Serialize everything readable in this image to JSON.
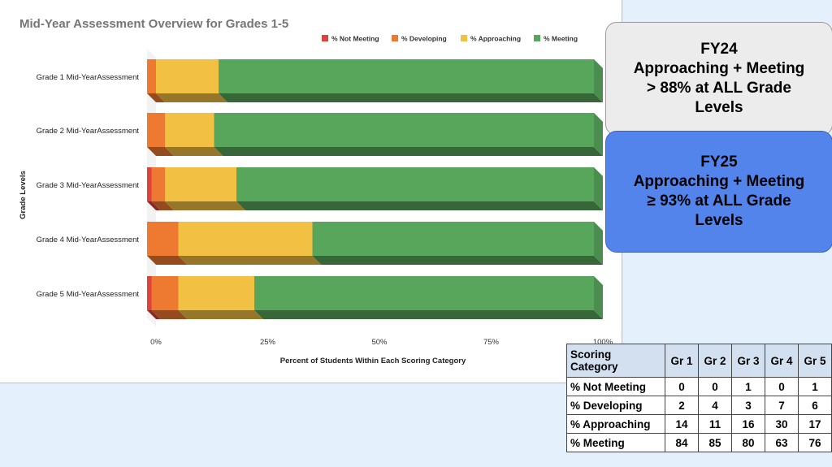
{
  "chart_data": {
    "type": "bar",
    "orientation": "horizontal",
    "stacked": true,
    "title": "Mid-Year Assessment Overview for Grades 1-5",
    "xlabel": "Percent of Students Within Each Scoring Category",
    "ylabel": "Grade Levels",
    "xlim": [
      0,
      100
    ],
    "x_ticks": [
      "0%",
      "25%",
      "50%",
      "75%",
      "100%"
    ],
    "legend_position": "top-right",
    "categories": [
      "Grade 1 Mid-YearAssessment",
      "Grade 2 Mid-YearAssessment",
      "Grade 3 Mid-YearAssessment",
      "Grade 4 Mid-YearAssessment",
      "Grade 5 Mid-YearAssessment"
    ],
    "series": [
      {
        "name": "% Not Meeting",
        "color": "#e0413a",
        "values": [
          0,
          0,
          1,
          0,
          1
        ]
      },
      {
        "name": "% Developing",
        "color": "#ee7a31",
        "values": [
          2,
          4,
          3,
          7,
          6
        ]
      },
      {
        "name": "% Approaching",
        "color": "#f2c043",
        "values": [
          14,
          11,
          16,
          30,
          17
        ]
      },
      {
        "name": "% Meeting",
        "color": "#58a65c",
        "values": [
          84,
          85,
          80,
          63,
          76
        ]
      }
    ]
  },
  "callouts": {
    "fy24": "FY24\nApproaching + Meeting\n> 88% at ALL Grade\nLevels",
    "fy25": "FY25\nApproaching + Meeting\n≥ 93% at ALL Grade\nLevels"
  },
  "table": {
    "header_category": "Scoring\nCategory",
    "columns": [
      "Gr 1",
      "Gr 2",
      "Gr 3",
      "Gr 4",
      "Gr 5"
    ],
    "rows": [
      {
        "label": "% Not Meeting",
        "values": [
          "0",
          "0",
          "1",
          "0",
          "1"
        ]
      },
      {
        "label": "% Developing",
        "values": [
          "2",
          "4",
          "3",
          "7",
          "6"
        ]
      },
      {
        "label": "% Approaching",
        "values": [
          "14",
          "11",
          "16",
          "30",
          "17"
        ]
      },
      {
        "label": "% Meeting",
        "values": [
          "84",
          "85",
          "80",
          "63",
          "76"
        ]
      }
    ]
  }
}
